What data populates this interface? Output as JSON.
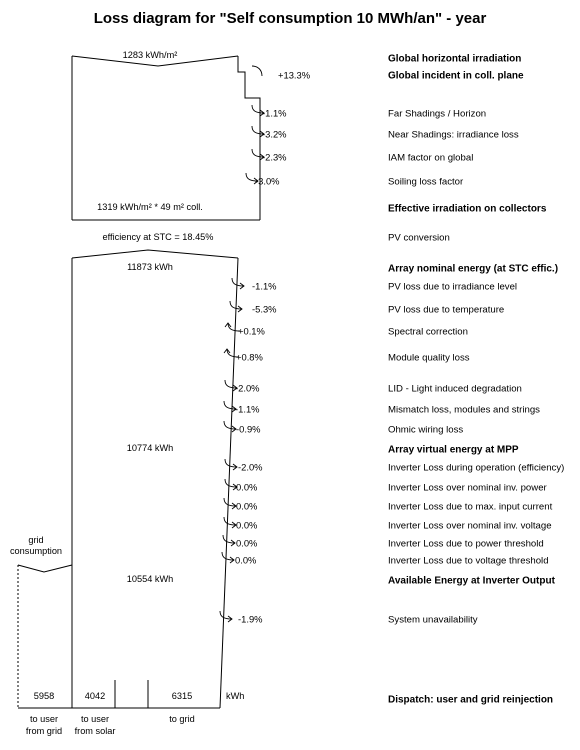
{
  "title": "Loss diagram for \"Self consumption 10 MWh/an\"  -  year",
  "values": {
    "ghi": "1283 kWh/m²",
    "effective": "1319 kWh/m² * 49 m² coll.",
    "efficiency": "efficiency at STC = 18.45%",
    "nominal": "11873 kWh",
    "virtual": "10774 kWh",
    "available": "10554 kWh",
    "grid_consumption": "grid\nconsumption",
    "unit": "kWh"
  },
  "steps": [
    {
      "pct": "",
      "label": "Global horizontal irradiation",
      "bold": true
    },
    {
      "pct": "+13.3%",
      "label": "Global incident in coll. plane",
      "bold": true
    },
    {
      "pct": "-1.1%",
      "label": "Far Shadings / Horizon",
      "bold": false
    },
    {
      "pct": "-3.2%",
      "label": "Near Shadings: irradiance loss",
      "bold": false
    },
    {
      "pct": "-2.3%",
      "label": "IAM factor on global",
      "bold": false
    },
    {
      "pct": "-3.0%",
      "label": "Soiling loss factor",
      "bold": false
    },
    {
      "pct": "",
      "label": "Effective irradiation on collectors",
      "bold": true
    },
    {
      "pct": "",
      "label": "PV conversion",
      "bold": false
    },
    {
      "pct": "",
      "label": "Array nominal energy (at STC effic.)",
      "bold": true
    },
    {
      "pct": "-1.1%",
      "label": "PV loss due to irradiance level",
      "bold": false
    },
    {
      "pct": "-5.3%",
      "label": "PV loss due to temperature",
      "bold": false
    },
    {
      "pct": "+0.1%",
      "label": "Spectral correction",
      "bold": false
    },
    {
      "pct": "+0.8%",
      "label": "Module quality loss",
      "bold": false
    },
    {
      "pct": "-2.0%",
      "label": "LID - Light induced degradation",
      "bold": false
    },
    {
      "pct": "-1.1%",
      "label": "Mismatch loss, modules and strings",
      "bold": false
    },
    {
      "pct": "-0.9%",
      "label": "Ohmic wiring loss",
      "bold": false
    },
    {
      "pct": "",
      "label": "Array virtual energy at MPP",
      "bold": true
    },
    {
      "pct": "-2.0%",
      "label": "Inverter Loss during operation (efficiency)",
      "bold": false
    },
    {
      "pct": "0.0%",
      "label": "Inverter Loss over nominal inv. power",
      "bold": false
    },
    {
      "pct": "0.0%",
      "label": "Inverter Loss due to max. input current",
      "bold": false
    },
    {
      "pct": "0.0%",
      "label": "Inverter Loss over nominal inv. voltage",
      "bold": false
    },
    {
      "pct": "0.0%",
      "label": "Inverter Loss due to power threshold",
      "bold": false
    },
    {
      "pct": "0.0%",
      "label": "Inverter Loss due to voltage threshold",
      "bold": false
    },
    {
      "pct": "",
      "label": "Available Energy at Inverter Output",
      "bold": true
    },
    {
      "pct": "-1.9%",
      "label": "System unavailability",
      "bold": false
    },
    {
      "pct": "",
      "label": "Dispatch: user and grid reinjection",
      "bold": true
    }
  ],
  "dispatch": [
    {
      "value": "5958",
      "label1": "to user",
      "label2": "from grid"
    },
    {
      "value": "4042",
      "label1": "to user",
      "label2": "from solar"
    },
    {
      "value": "6315",
      "label1": "to grid",
      "label2": ""
    }
  ]
}
